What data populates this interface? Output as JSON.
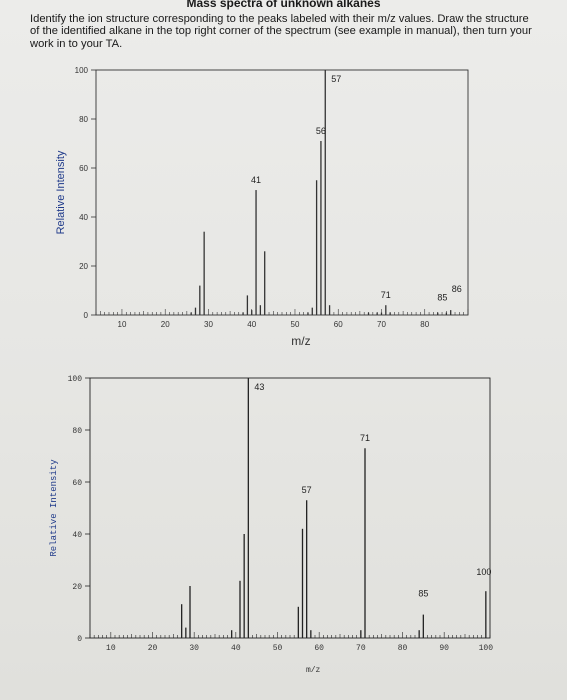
{
  "page": {
    "title": "Mass spectra of unknown alkanes",
    "instructions": "Identify the ion structure corresponding to the peaks labeled with their m/z values. Draw the structure of the identified alkane in the top right corner of the spectrum (see example in manual), then turn your work in to your TA."
  },
  "chart_data": [
    {
      "type": "bar",
      "title": "",
      "xlabel": "m/z",
      "ylabel": "Relative Intensity",
      "xlim": [
        4,
        90
      ],
      "ylim": [
        0,
        100
      ],
      "xticks": [
        10,
        20,
        30,
        40,
        50,
        60,
        70,
        80
      ],
      "yticks": [
        0,
        20,
        40,
        60,
        80,
        100
      ],
      "grid": false,
      "x": [
        26,
        27,
        28,
        29,
        38,
        39,
        40,
        41,
        42,
        43,
        53,
        54,
        55,
        56,
        57,
        58,
        67,
        69,
        70,
        71,
        72,
        83,
        85,
        86
      ],
      "values": [
        1,
        3,
        12,
        34,
        1,
        8,
        2,
        51,
        4,
        26,
        1,
        3,
        55,
        71,
        100,
        4,
        1,
        1,
        1,
        4,
        1,
        1,
        1,
        2
      ],
      "peak_labels": [
        {
          "x": 41,
          "label": "41"
        },
        {
          "x": 56,
          "label": "56"
        },
        {
          "x": 57,
          "label": "57"
        },
        {
          "x": 71,
          "label": "71"
        },
        {
          "x": 85,
          "label": "85"
        },
        {
          "x": 86,
          "label": "86"
        }
      ]
    },
    {
      "type": "bar",
      "title": "",
      "xlabel": "m/z",
      "ylabel": "Relative Intensity",
      "xlim": [
        5,
        101
      ],
      "ylim": [
        0,
        100
      ],
      "xticks": [
        10,
        20,
        30,
        40,
        50,
        60,
        70,
        80,
        90,
        100
      ],
      "yticks": [
        0,
        20,
        40,
        60,
        80,
        100
      ],
      "grid": false,
      "x": [
        27,
        28,
        29,
        39,
        41,
        42,
        43,
        55,
        56,
        57,
        58,
        70,
        71,
        84,
        85,
        100
      ],
      "values": [
        13,
        4,
        20,
        3,
        22,
        40,
        100,
        12,
        42,
        53,
        3,
        3,
        73,
        3,
        9,
        18
      ],
      "peak_labels": [
        {
          "x": 43,
          "label": "43"
        },
        {
          "x": 57,
          "label": "57"
        },
        {
          "x": 71,
          "label": "71"
        },
        {
          "x": 85,
          "label": "85"
        },
        {
          "x": 100,
          "label": "100"
        }
      ]
    }
  ]
}
